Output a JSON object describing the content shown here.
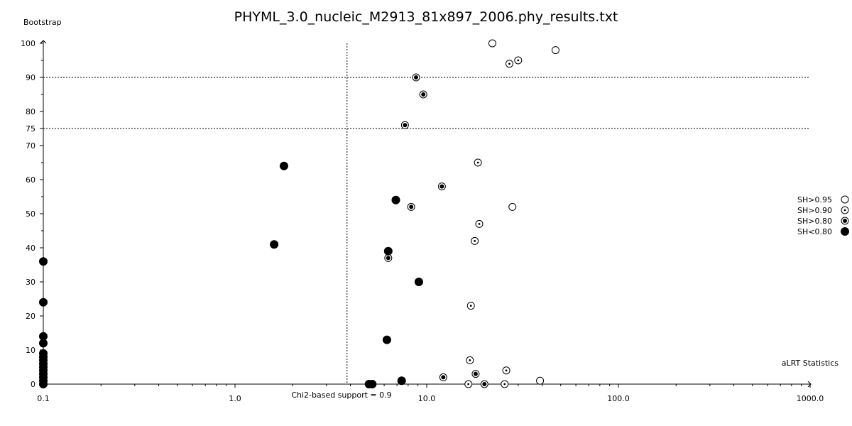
{
  "chart_data": {
    "type": "scatter",
    "title": "PHYML_3.0_nucleic_M2913_81x897_2006.phy_results.txt",
    "xlabel": "aLRT Statistics",
    "ylabel": "Bootstrap",
    "x_scale": "log",
    "xlim": [
      0.1,
      1000.0
    ],
    "ylim": [
      0,
      100
    ],
    "x_ticks": [
      "0.1",
      "1.0",
      "10.0",
      "100.0",
      "1000.0"
    ],
    "y_ticks": [
      0,
      10,
      20,
      30,
      40,
      50,
      60,
      70,
      75,
      80,
      90,
      100
    ],
    "grid": false,
    "legend_position": "right",
    "reference_lines": {
      "horizontal": [
        75,
        90
      ],
      "vertical": 3.84,
      "vertical_label": "Chi2-based support = 0.9"
    },
    "series": [
      {
        "name": "SH>0.95",
        "marker": "open-circle",
        "points": [
          [
            22,
            100
          ],
          [
            47,
            98
          ],
          [
            39,
            1
          ],
          [
            28,
            52
          ]
        ]
      },
      {
        "name": "SH>0.90",
        "marker": "dotted-circle",
        "points": [
          [
            27,
            94
          ],
          [
            30,
            95
          ],
          [
            18.5,
            65
          ],
          [
            18.8,
            47
          ],
          [
            17.8,
            42
          ],
          [
            17,
            23
          ],
          [
            16.8,
            7
          ],
          [
            26,
            4
          ],
          [
            16.5,
            0
          ],
          [
            25.5,
            0
          ]
        ]
      },
      {
        "name": "SH>0.80",
        "marker": "ringed-dot",
        "points": [
          [
            8.8,
            90
          ],
          [
            9.6,
            85
          ],
          [
            7.7,
            76
          ],
          [
            12,
            58
          ],
          [
            8.3,
            52
          ],
          [
            6.3,
            37
          ],
          [
            12.2,
            2
          ],
          [
            18,
            3
          ],
          [
            20,
            0
          ]
        ]
      },
      {
        "name": "SH<0.80",
        "marker": "filled-circle",
        "points": [
          [
            1.8,
            64
          ],
          [
            1.6,
            41
          ],
          [
            6.9,
            54
          ],
          [
            6.3,
            39
          ],
          [
            9.1,
            30
          ],
          [
            6.2,
            13
          ],
          [
            7.4,
            1
          ],
          [
            5,
            0
          ],
          [
            5.2,
            0
          ],
          [
            0.1,
            36
          ],
          [
            0.1,
            24
          ],
          [
            0.1,
            14
          ],
          [
            0.1,
            12
          ],
          [
            0.1,
            9
          ],
          [
            0.1,
            8
          ],
          [
            0.1,
            7
          ],
          [
            0.1,
            6
          ],
          [
            0.1,
            5
          ],
          [
            0.1,
            4
          ],
          [
            0.1,
            3
          ],
          [
            0.1,
            2
          ],
          [
            0.1,
            1
          ],
          [
            0.1,
            0
          ]
        ]
      }
    ]
  }
}
